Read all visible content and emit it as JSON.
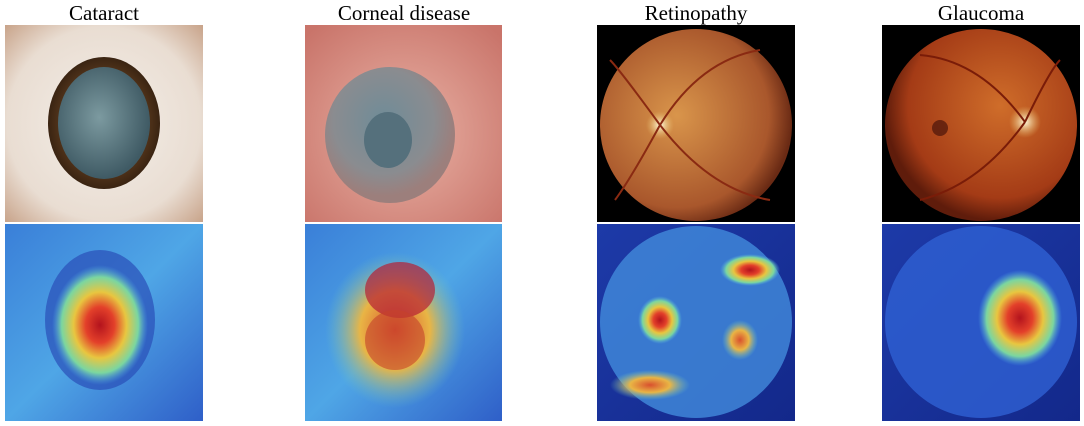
{
  "columns": [
    {
      "title": "Cataract"
    },
    {
      "title": "Corneal disease"
    },
    {
      "title": "Retinopathy"
    },
    {
      "title": "Glaucoma"
    }
  ]
}
